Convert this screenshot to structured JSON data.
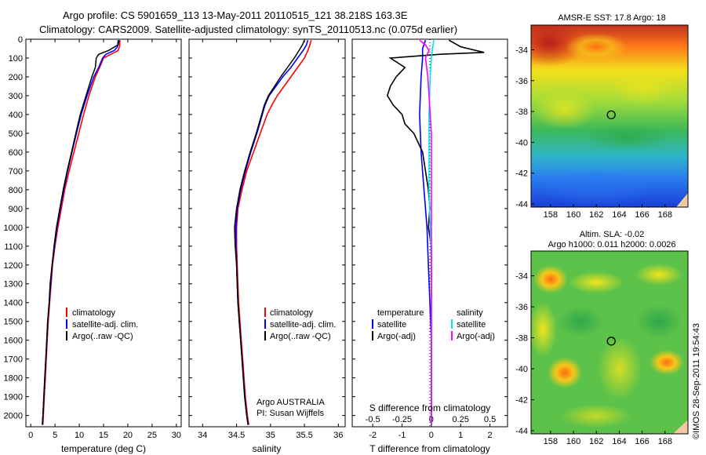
{
  "header": {
    "line1": "Argo profile: CS 5901659_113 13-May-2011 20110515_121 38.218S 163.3E",
    "line2": "Climatology: CARS2009. Satellite-adjusted climatology: synTS_20110513.nc (0.075d earlier)"
  },
  "colors": {
    "climatology": "#ff0000",
    "satellite": "#0000ff",
    "argo": "#000000",
    "sal_satellite": "#00e5ee",
    "sal_argo": "#ff00ff"
  },
  "chart_data": [
    {
      "type": "line",
      "name": "temperature-profile",
      "xlabel": "temperature (deg C)",
      "ylabel": "",
      "xlim": [
        -1,
        31
      ],
      "ylim": [
        2060,
        0
      ],
      "xticks": [
        "0",
        "5",
        "10",
        "15",
        "20",
        "25",
        "30"
      ],
      "yticks": [
        "0",
        "100",
        "200",
        "300",
        "400",
        "500",
        "600",
        "700",
        "800",
        "900",
        "1000",
        "1100",
        "1200",
        "1300",
        "1400",
        "1500",
        "1600",
        "1700",
        "1800",
        "1900",
        "2000"
      ],
      "legend": [
        "climatology",
        "satellite-adj. clim.",
        "Argo(..raw -QC)"
      ],
      "series": [
        {
          "name": "climatology",
          "depth": [
            5,
            40,
            60,
            80,
            100,
            150,
            200,
            300,
            400,
            500,
            600,
            700,
            800,
            900,
            1000,
            1100,
            1200,
            1300,
            1400,
            1500,
            1600,
            1700,
            1800,
            1900,
            2000,
            2050
          ],
          "values": [
            18.4,
            18.3,
            18.0,
            16.5,
            15.0,
            14.2,
            13.3,
            12.0,
            10.9,
            9.9,
            8.9,
            7.9,
            7.0,
            6.3,
            5.6,
            5.0,
            4.5,
            4.2,
            3.9,
            3.6,
            3.4,
            3.2,
            3.0,
            2.8,
            2.6,
            2.5
          ]
        },
        {
          "name": "satellite-adj. clim.",
          "depth": [
            5,
            40,
            60,
            80,
            100,
            150,
            200,
            300,
            400,
            500,
            600,
            700,
            800,
            900,
            1000,
            1100,
            1200,
            1300,
            1400,
            1500,
            1600,
            1700,
            1800,
            1900,
            2000,
            2050
          ],
          "values": [
            18.0,
            17.9,
            17.2,
            15.5,
            14.8,
            14.0,
            13.0,
            11.6,
            10.4,
            9.4,
            8.5,
            7.6,
            6.8,
            6.1,
            5.4,
            4.9,
            4.4,
            4.1,
            3.8,
            3.5,
            3.3,
            3.1,
            2.9,
            2.7,
            2.5,
            2.4
          ]
        },
        {
          "name": "Argo(..raw -QC)",
          "depth": [
            5,
            30,
            60,
            80,
            100,
            150,
            200,
            300,
            400,
            500,
            600,
            700,
            800,
            900,
            1000,
            1100,
            1200,
            1300,
            1400,
            1500,
            1600,
            1700,
            1800,
            1900,
            2000,
            2050
          ],
          "values": [
            18.2,
            18.0,
            16.0,
            14.0,
            13.5,
            13.3,
            12.6,
            11.4,
            10.2,
            9.3,
            8.4,
            7.5,
            6.7,
            6.0,
            5.3,
            4.8,
            4.4,
            4.0,
            3.8,
            3.5,
            3.3,
            3.1,
            2.9,
            2.7,
            2.5,
            2.4
          ]
        }
      ]
    },
    {
      "type": "line",
      "name": "salinity-profile",
      "xlabel": "salinity",
      "xlim": [
        33.8,
        36.1
      ],
      "ylim": [
        2060,
        0
      ],
      "xticks": [
        "34",
        "34.5",
        "35",
        "35.5",
        "36"
      ],
      "legend": [
        "climatology",
        "satellite-adj. clim.",
        "Argo(..raw -QC)"
      ],
      "annotation": [
        "Argo AUSTRALIA",
        "PI: Susan Wijffels"
      ],
      "series": [
        {
          "name": "climatology",
          "depth": [
            5,
            30,
            60,
            100,
            150,
            200,
            250,
            300,
            350,
            400,
            450,
            500,
            600,
            700,
            800,
            900,
            1000,
            1100,
            1200,
            1300,
            1400,
            1500,
            1600,
            1700,
            1800,
            1900,
            2000,
            2050
          ],
          "values": [
            35.6,
            35.58,
            35.55,
            35.5,
            35.4,
            35.3,
            35.2,
            35.1,
            35.02,
            34.95,
            34.9,
            34.85,
            34.75,
            34.65,
            34.58,
            34.52,
            34.5,
            34.5,
            34.51,
            34.52,
            34.53,
            34.55,
            34.57,
            34.59,
            34.61,
            34.63,
            34.66,
            34.68
          ]
        },
        {
          "name": "satellite-adj. clim.",
          "depth": [
            5,
            30,
            60,
            100,
            150,
            200,
            250,
            300,
            350,
            400,
            450,
            500,
            600,
            700,
            800,
            900,
            1000,
            1100,
            1200,
            1300,
            1400,
            1500,
            1600,
            1700,
            1800,
            1900,
            2000,
            2050
          ],
          "values": [
            35.55,
            35.53,
            35.48,
            35.4,
            35.3,
            35.18,
            35.08,
            34.98,
            34.92,
            34.88,
            34.84,
            34.8,
            34.71,
            34.63,
            34.56,
            34.51,
            34.49,
            34.49,
            34.5,
            34.51,
            34.52,
            34.54,
            34.56,
            34.58,
            34.6,
            34.62,
            34.65,
            34.67
          ]
        },
        {
          "name": "Argo(..raw -QC)",
          "depth": [
            5,
            30,
            60,
            100,
            150,
            200,
            250,
            300,
            350,
            400,
            450,
            500,
            600,
            700,
            800,
            900,
            1000,
            1100,
            1200,
            1300,
            1400,
            1500,
            1600,
            1700,
            1800,
            1900,
            2000,
            2050
          ],
          "values": [
            35.5,
            35.47,
            35.42,
            35.35,
            35.25,
            35.15,
            35.06,
            34.97,
            34.91,
            34.87,
            34.83,
            34.79,
            34.7,
            34.62,
            34.55,
            34.5,
            34.47,
            34.48,
            34.5,
            34.51,
            34.52,
            34.54,
            34.56,
            34.58,
            34.6,
            34.62,
            34.65,
            34.67
          ]
        }
      ]
    },
    {
      "type": "line",
      "name": "difference-profile",
      "xlabel": "T difference from climatology",
      "title_bottom": "S difference from climatology",
      "xlim": [
        -2.7,
        2.6
      ],
      "ylim": [
        2060,
        0
      ],
      "xticks_T": [
        "-2",
        "-1",
        "0",
        "1",
        "2"
      ],
      "xticks_S": [
        "-0.5",
        "-0.25",
        "0",
        "0.25",
        "0.5"
      ],
      "legend_headers": [
        "temperature",
        "salinity"
      ],
      "legend": [
        "satellite",
        "Argo(-adj)",
        "satellite",
        "Argo(-adj)"
      ],
      "series": [
        {
          "name": "satellite",
          "depth": [
            5,
            50,
            100,
            200,
            400,
            600,
            800,
            1000,
            1200,
            1400,
            1600,
            1800,
            2000,
            2050
          ],
          "values": [
            -0.2,
            -0.3,
            -0.3,
            -0.35,
            -0.4,
            -0.35,
            -0.25,
            -0.15,
            -0.1,
            -0.05,
            0,
            0,
            0,
            0
          ]
        },
        {
          "name": "Argo(-adj)",
          "depth": [
            5,
            40,
            70,
            80,
            100,
            150,
            200,
            250,
            300,
            350,
            400,
            450,
            500,
            600,
            700,
            800,
            900,
            1000,
            1100,
            1200,
            1300,
            1400,
            1600,
            1800,
            2000,
            2050
          ],
          "values": [
            0.6,
            1.0,
            1.8,
            0.3,
            -1.4,
            -0.9,
            -1.2,
            -1.4,
            -1.5,
            -1.3,
            -1.0,
            -0.9,
            -0.6,
            -0.3,
            -0.2,
            -0.1,
            -0.05,
            -0.1,
            0,
            0,
            0,
            0,
            0,
            0,
            0,
            0
          ]
        },
        {
          "name": "sal satellite",
          "depth": [
            5,
            50,
            100,
            200,
            400,
            600,
            800,
            1000,
            1200,
            1400,
            1600,
            1800,
            2000,
            2050
          ],
          "values": [
            0.02,
            0.01,
            0.0,
            -0.01,
            -0.02,
            -0.02,
            -0.02,
            -0.01,
            0,
            0,
            0,
            0,
            0,
            0
          ]
        },
        {
          "name": "sal Argo(-adj)",
          "depth": [
            5,
            30,
            60,
            100,
            150,
            200,
            300,
            400,
            500,
            600,
            700,
            800,
            1000,
            1200,
            1400,
            1600,
            1800,
            2000,
            2050
          ],
          "values": [
            -0.1,
            -0.05,
            -0.02,
            -0.05,
            -0.04,
            -0.03,
            -0.02,
            -0.01,
            0.0,
            0.0,
            0.0,
            0.0,
            0,
            0,
            0,
            0,
            0,
            0,
            0
          ]
        }
      ]
    }
  ],
  "maps": {
    "sst_title": "AMSR-E SST: 17.8 Argo: 18",
    "sla_title1": "Altim. SLA: -0.02",
    "sla_title2": "Argo h1000: 0.011 h2000: 0.0026",
    "yticks": [
      "-34",
      "-36",
      "-38",
      "-40",
      "-42",
      "-44"
    ],
    "xticks": [
      "158",
      "160",
      "162",
      "164",
      "166",
      "168"
    ],
    "float_lon": 163.3,
    "float_lat": -38.218
  },
  "credit": "©IMOS 28-Sep-2011 19:54:43"
}
